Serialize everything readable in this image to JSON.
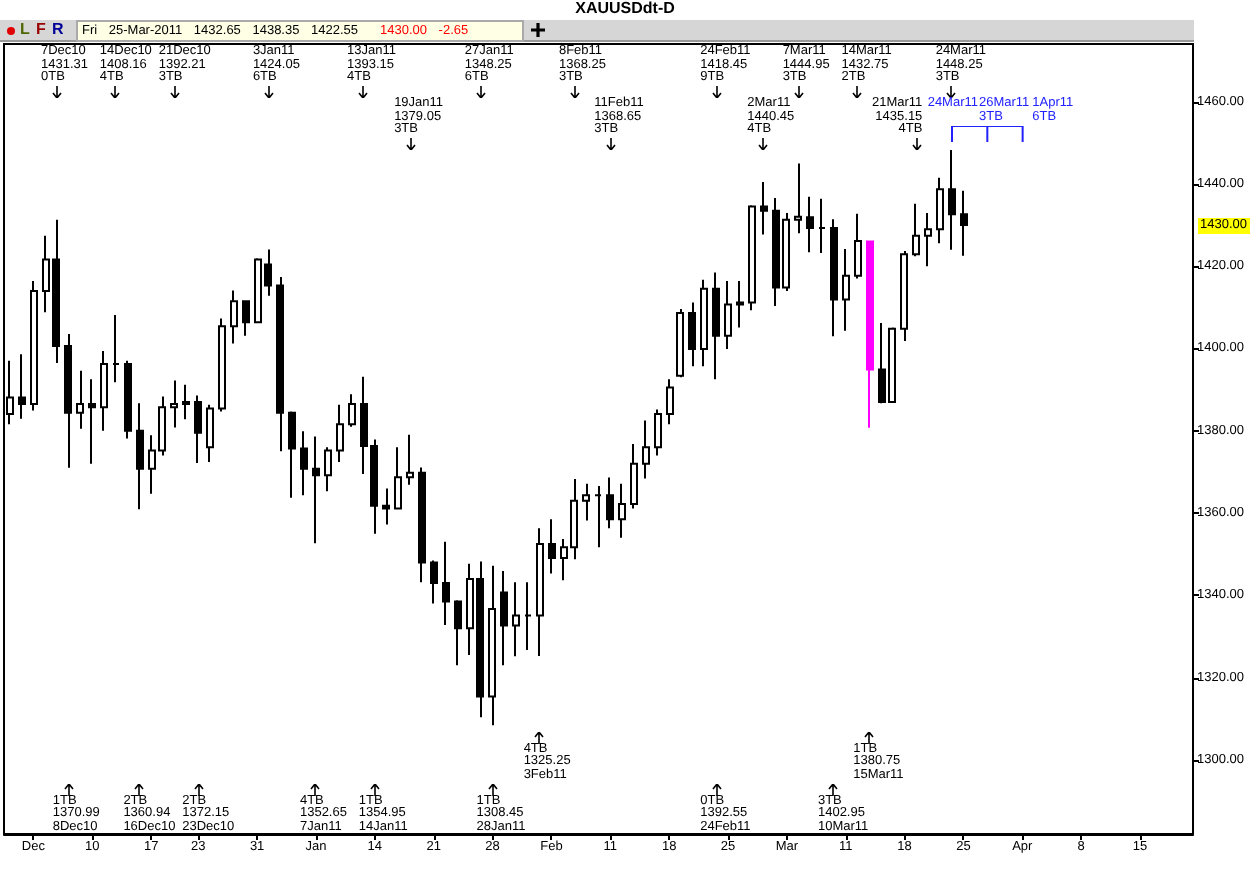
{
  "chart_data": {
    "type": "candlestick",
    "title": "XAUUSDdt-D",
    "subtitle": "Fri 25-Mar-2011 1432.65 1438.35 1422.55",
    "annotations": [
      "L",
      "F",
      "R",
      "1430.00 -2.65",
      "7Dec10\n1431.31\n0TB",
      "14Dec10\n1408.16\n4TB",
      "21Dec10\n1392.21\n3TB",
      "3Jan11\n1424.05\n6TB",
      "13Jan11\n1393.15\n4TB",
      "19Jan11\n1379.05\n3TB",
      "27Jan11\n1348.25\n6TB",
      "8Feb11\n1368.25\n3TB",
      "11Feb11\n1368.65\n3TB",
      "24Feb11\n1418.45\n9TB",
      "2Mar11\n1440.45\n4TB",
      "7Mar11\n1444.95\n3TB",
      "14Mar11\n1432.75\n2TB",
      "21Mar11\n1435.15\n4TB",
      "24Mar11\n1448.25\n3TB",
      "1TB\n1370.99\n8Dec10",
      "2TB\n1360.94\n16Dec10",
      "2TB\n1372.15\n23Dec10",
      "4TB\n1352.65\n7Jan11",
      "1TB\n1354.95\n14Jan11",
      "1TB\n1308.45\n28Jan11",
      "4TB\n1325.25\n3Feb11",
      "0TB\n1392.55\n24Feb11",
      "3TB\n1402.95\n10Mar11",
      "1TB\n1380.75\n15Mar11",
      "24Mar11",
      "26Mar11\n3TB",
      "1Apr11\n6TB",
      {
        "text": "1430.00",
        "y": 1430
      }
    ],
    "categories": [
      null,
      null,
      "Dec",
      null,
      null,
      null,
      null,
      "10",
      null,
      null,
      null,
      null,
      "17",
      null,
      null,
      null,
      "23",
      null,
      null,
      null,
      null,
      "31",
      null,
      null,
      null,
      null,
      "Jan",
      null,
      null,
      null,
      null,
      "14",
      null,
      null,
      null,
      null,
      "21",
      null,
      null,
      null,
      null,
      "28",
      null,
      null,
      null,
      null,
      "Feb",
      null,
      null,
      null,
      null,
      "11",
      null,
      null,
      null,
      null,
      "18",
      null,
      null,
      null,
      null,
      "25",
      null,
      null,
      null,
      null,
      "Mar",
      null,
      null,
      null,
      null,
      "11",
      null,
      null,
      null,
      null,
      "18",
      null,
      null,
      null,
      null,
      "25",
      null,
      null,
      null,
      null,
      "Apr",
      null,
      null,
      null,
      null,
      "8",
      null,
      null,
      null,
      null,
      "15",
      null,
      null,
      null,
      null
    ],
    "ohlc": [
      [
        1384.1,
        1397.0,
        1381.6,
        1388.1
      ],
      [
        1388.1,
        1398.6,
        1382.9,
        1386.5
      ],
      [
        1386.5,
        1416.4,
        1384.9,
        1414.0
      ],
      [
        1414.0,
        1427.4,
        1408.8,
        1421.6
      ],
      [
        1421.6,
        1431.31,
        1396.5,
        1400.6
      ],
      [
        1400.6,
        1403.5,
        1370.99,
        1384.4
      ],
      [
        1384.4,
        1394.6,
        1380.5,
        1386.5
      ],
      [
        1386.5,
        1392.5,
        1372.0,
        1385.7
      ],
      [
        1385.7,
        1399.4,
        1380.0,
        1396.2
      ],
      [
        1396.2,
        1408.16,
        1391.8,
        1396.2
      ],
      [
        1396.2,
        1397.0,
        1378.1,
        1380.0
      ],
      [
        1380.0,
        1386.7,
        1360.94,
        1370.8
      ],
      [
        1370.8,
        1378.9,
        1364.7,
        1375.2
      ],
      [
        1375.2,
        1388.3,
        1374.0,
        1385.7
      ],
      [
        1385.7,
        1392.21,
        1380.8,
        1386.5
      ],
      [
        1386.5,
        1391.2,
        1382.8,
        1387.0
      ],
      [
        1387.0,
        1388.6,
        1372.15,
        1379.5
      ],
      [
        1376.0,
        1386.3,
        1372.4,
        1385.4
      ],
      [
        1385.4,
        1407.3,
        1384.7,
        1405.4
      ],
      [
        1405.4,
        1414.1,
        1401.2,
        1411.5
      ],
      [
        1411.5,
        1411.5,
        1403.1,
        1406.4
      ],
      [
        1406.4,
        1421.9,
        1406.4,
        1421.6
      ],
      [
        1420.4,
        1424.05,
        1412.8,
        1415.3
      ],
      [
        1415.3,
        1417.4,
        1375.0,
        1384.4
      ],
      [
        1384.4,
        1384.7,
        1363.7,
        1375.7
      ],
      [
        1375.7,
        1379.9,
        1364.3,
        1370.8
      ],
      [
        1370.8,
        1378.6,
        1352.65,
        1369.2
      ],
      [
        1369.2,
        1376.0,
        1365.3,
        1375.2
      ],
      [
        1375.2,
        1386.3,
        1372.4,
        1381.6
      ],
      [
        1381.6,
        1388.9,
        1381.0,
        1386.5
      ],
      [
        1386.5,
        1393.15,
        1369.5,
        1376.3
      ],
      [
        1376.3,
        1377.9,
        1354.95,
        1361.8
      ],
      [
        1361.8,
        1366.0,
        1357.2,
        1361.1
      ],
      [
        1361.1,
        1376.0,
        1361.0,
        1368.7
      ],
      [
        1368.7,
        1379.05,
        1366.9,
        1369.8
      ],
      [
        1369.8,
        1371.1,
        1343.2,
        1348.0
      ],
      [
        1348.0,
        1348.5,
        1338.0,
        1343.0
      ],
      [
        1343.0,
        1353.0,
        1332.8,
        1338.5
      ],
      [
        1338.5,
        1338.8,
        1323.0,
        1332.0
      ],
      [
        1332.0,
        1347.7,
        1325.5,
        1344.0
      ],
      [
        1344.0,
        1348.25,
        1310.4,
        1315.4
      ],
      [
        1315.4,
        1347.2,
        1308.45,
        1336.7
      ],
      [
        1340.7,
        1345.9,
        1323.0,
        1332.7
      ],
      [
        1332.7,
        1343.2,
        1325.2,
        1335.1
      ],
      [
        1335.1,
        1343.2,
        1326.7,
        1335.1
      ],
      [
        1335.1,
        1356.3,
        1325.25,
        1352.5
      ],
      [
        1352.5,
        1358.5,
        1345.3,
        1349.1
      ],
      [
        1349.1,
        1353.7,
        1343.7,
        1351.7
      ],
      [
        1351.7,
        1368.25,
        1348.8,
        1363.0
      ],
      [
        1363.0,
        1367.1,
        1358.2,
        1364.3
      ],
      [
        1364.3,
        1366.6,
        1351.7,
        1364.3
      ],
      [
        1364.3,
        1368.65,
        1356.3,
        1358.5
      ],
      [
        1358.5,
        1367.1,
        1354.0,
        1362.2
      ],
      [
        1362.2,
        1376.8,
        1361.1,
        1372.0
      ],
      [
        1372.0,
        1382.5,
        1368.4,
        1376.0
      ],
      [
        1376.0,
        1385.2,
        1374.0,
        1384.1
      ],
      [
        1384.1,
        1392.5,
        1381.6,
        1390.5
      ],
      [
        1393.4,
        1409.6,
        1393.0,
        1408.6
      ],
      [
        1408.6,
        1411.2,
        1395.7,
        1399.9
      ],
      [
        1399.9,
        1416.7,
        1395.7,
        1414.5
      ],
      [
        1414.5,
        1418.45,
        1392.55,
        1403.1
      ],
      [
        1403.1,
        1416.4,
        1399.9,
        1410.7
      ],
      [
        1410.7,
        1416.4,
        1405.1,
        1411.2
      ],
      [
        1411.2,
        1434.8,
        1409.3,
        1434.5
      ],
      [
        1434.5,
        1440.45,
        1427.7,
        1433.5
      ],
      [
        1433.5,
        1436.6,
        1410.3,
        1414.8
      ],
      [
        1414.8,
        1432.9,
        1414.0,
        1431.3
      ],
      [
        1431.3,
        1444.95,
        1428.0,
        1432.0
      ],
      [
        1431.9,
        1436.9,
        1423.4,
        1429.3
      ],
      [
        1429.3,
        1436.4,
        1423.2,
        1429.3
      ],
      [
        1429.3,
        1431.4,
        1402.95,
        1411.9
      ],
      [
        1411.9,
        1424.2,
        1404.3,
        1417.7
      ],
      [
        1417.7,
        1432.75,
        1417.0,
        1426.1
      ],
      [
        1426.0,
        1426.1,
        1380.75,
        1394.9
      ],
      [
        1394.9,
        1406.2,
        1386.7,
        1387.0
      ],
      [
        1387.0,
        1405.1,
        1387.0,
        1404.8
      ],
      [
        1404.8,
        1423.7,
        1401.8,
        1422.9
      ],
      [
        1422.9,
        1435.15,
        1422.4,
        1427.4
      ],
      [
        1427.4,
        1432.9,
        1420.0,
        1429.0
      ],
      [
        1429.0,
        1441.5,
        1425.6,
        1438.7
      ],
      [
        1438.7,
        1448.25,
        1424.0,
        1432.6
      ],
      [
        1432.65,
        1438.35,
        1422.55,
        1430.0
      ],
      null,
      null,
      null,
      null,
      null,
      null,
      null,
      null,
      null,
      null,
      null,
      null,
      null,
      null,
      null,
      null,
      null,
      null,
      null
    ],
    "colors": [
      "#000000",
      "#000000",
      "#000000",
      "#000000",
      "#000000",
      "#000000",
      "#000000",
      "#000000",
      "#000000",
      "#000000",
      "#000000",
      "#000000",
      "#000000",
      "#000000",
      "#000000",
      "#000000",
      "#000000",
      "#000000",
      "#000000",
      "#000000",
      "#000000",
      "#000000",
      "#000000",
      "#000000",
      "#000000",
      "#000000",
      "#000000",
      "#000000",
      "#000000",
      "#000000",
      "#000000",
      "#000000",
      "#000000",
      "#000000",
      "#000000",
      "#000000",
      "#000000",
      "#000000",
      "#000000",
      "#000000",
      "#000000",
      "#000000",
      "#000000",
      "#000000",
      "#000000",
      "#000000",
      "#000000",
      "#000000",
      "#000000",
      "#000000",
      "#000000",
      "#000000",
      "#000000",
      "#000000",
      "#000000",
      "#000000",
      "#000000",
      "#000000",
      "#000000",
      "#000000",
      "#000000",
      "#000000",
      "#000000",
      "#000000",
      "#000000",
      "#000000",
      "#000000",
      "#000000",
      "#000000",
      "#000000",
      "#000000",
      "#000000",
      "#000000",
      "#ff00ff",
      "#000000",
      "#000000",
      "#000000",
      "#000000",
      "#000000",
      "#000000",
      "#000000",
      "#000000",
      null,
      null,
      null,
      null,
      null,
      null,
      null,
      null,
      null,
      null,
      null,
      null,
      null,
      null,
      null,
      null,
      null,
      null,
      null
    ],
    "ylim": [
      1282,
      1474
    ],
    "yticks": [
      {
        "value": 1300,
        "label": "1300.00"
      },
      {
        "value": 1320,
        "label": "1320.00"
      },
      {
        "value": 1340,
        "label": "1340.00"
      },
      {
        "value": 1360,
        "label": "1360.00"
      },
      {
        "value": 1380,
        "label": "1380.00"
      },
      {
        "value": 1400,
        "label": "1400.00"
      },
      {
        "value": 1420,
        "label": "1420.00"
      },
      {
        "value": 1440,
        "label": "1440.00"
      },
      {
        "value": 1460,
        "label": "1460.00"
      }
    ]
  }
}
